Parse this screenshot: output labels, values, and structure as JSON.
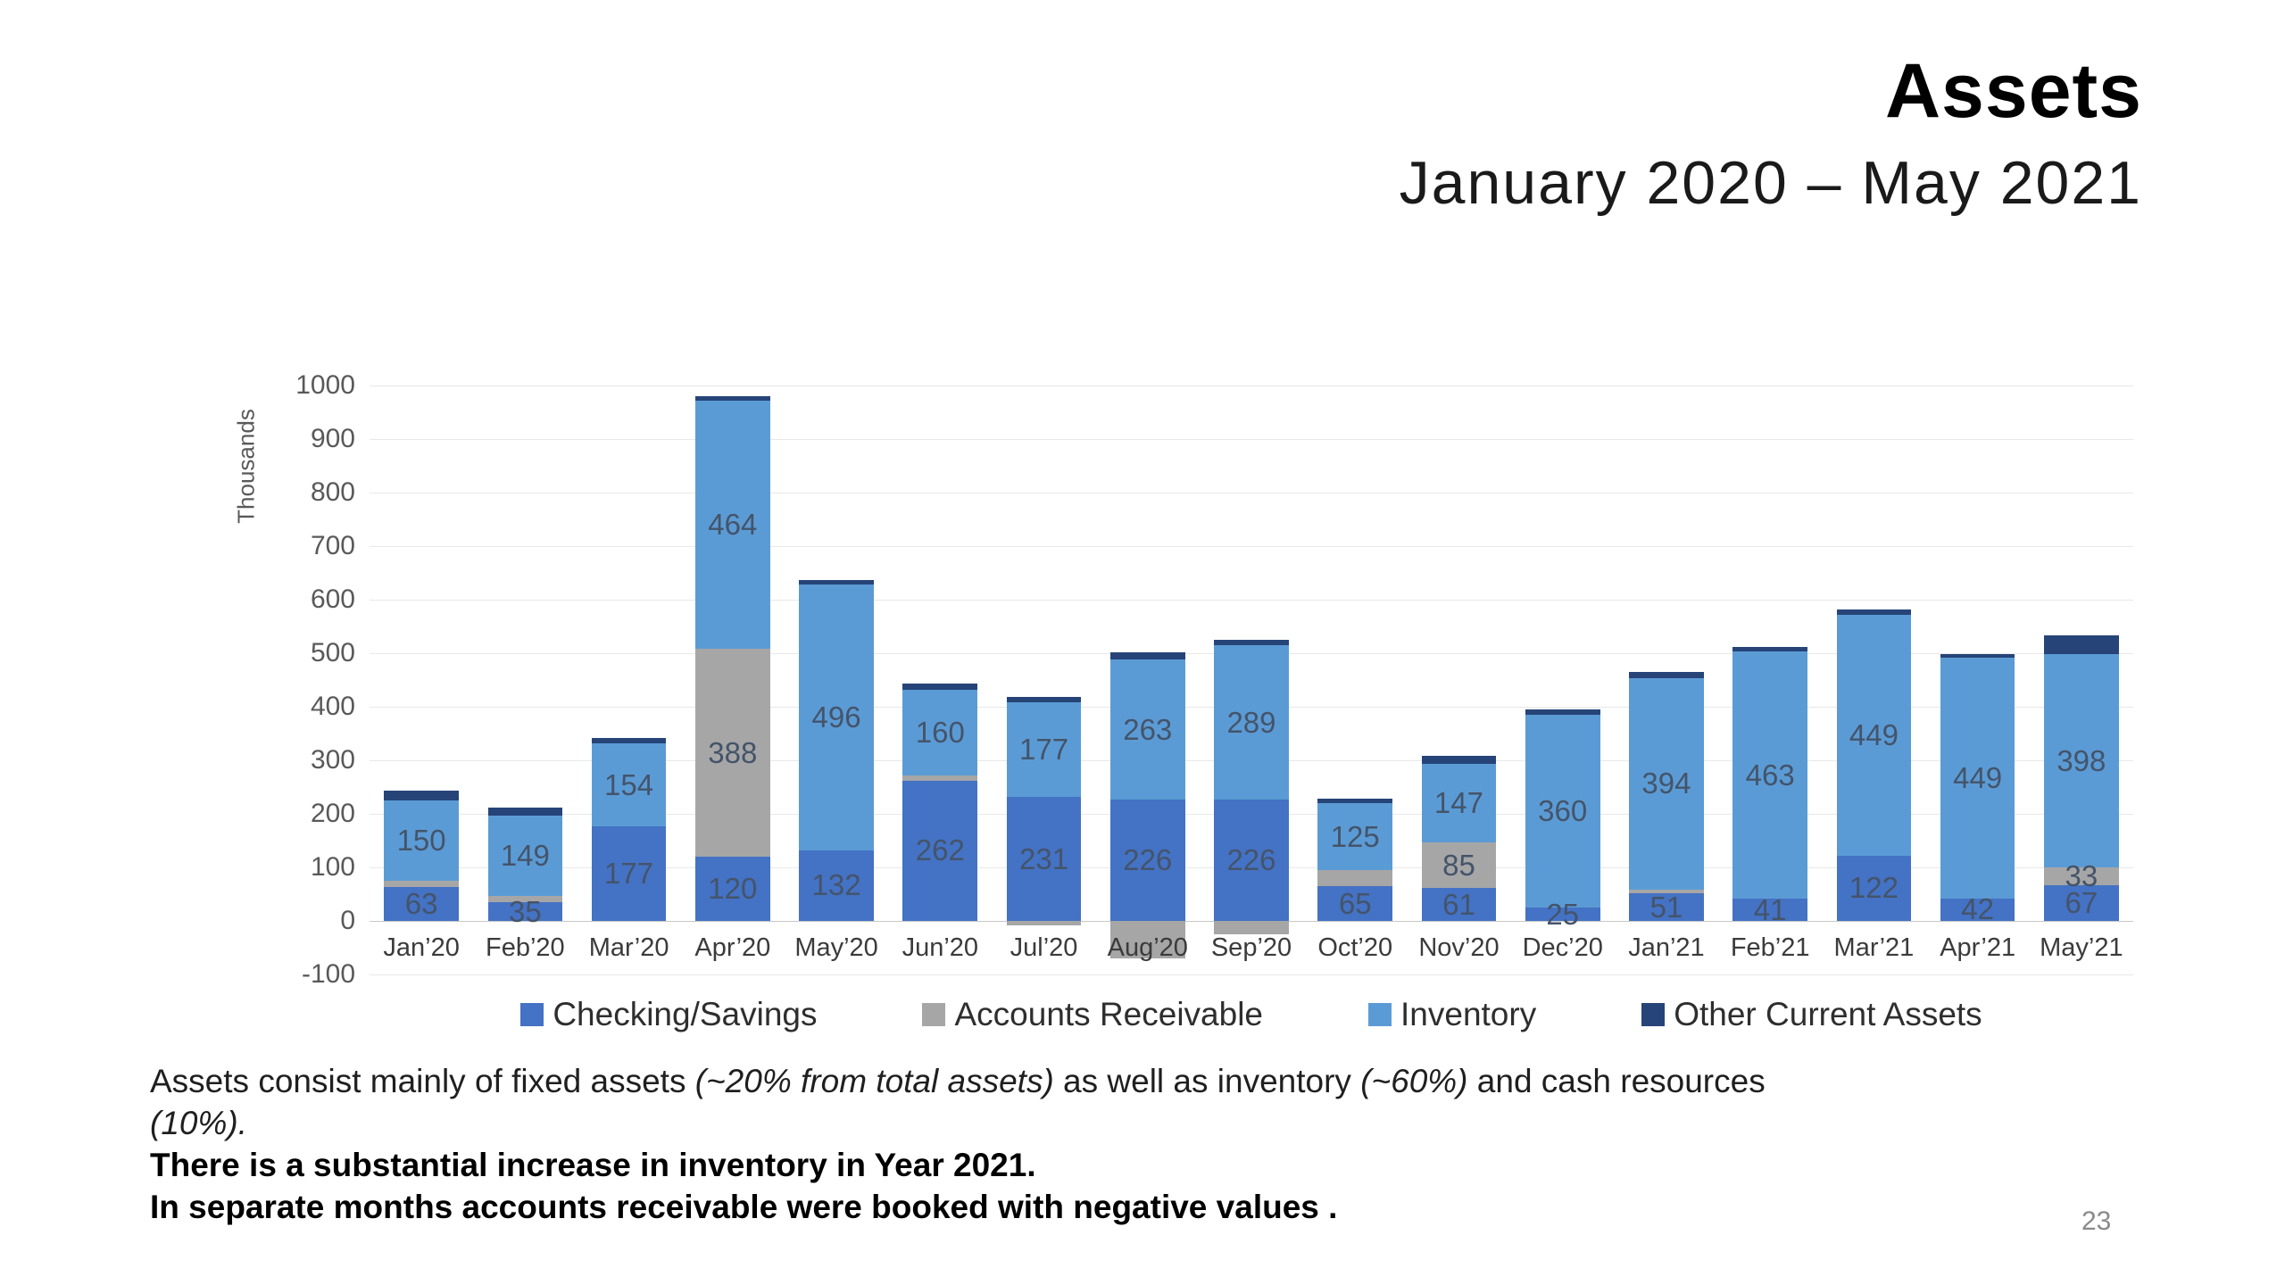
{
  "header": {
    "title": "Assets",
    "subtitle": "January 2020 – May 2021"
  },
  "chart_data": {
    "type": "bar",
    "stacked": true,
    "y_axis_title": "Thousands",
    "ylim": [
      -100,
      1000
    ],
    "y_ticks": [
      1000,
      900,
      800,
      700,
      600,
      500,
      400,
      300,
      200,
      100,
      0,
      -100
    ],
    "grid": true,
    "legend_position": "bottom",
    "categories": [
      "Jan’20",
      "Feb’20",
      "Mar’20",
      "Apr’20",
      "May’20",
      "Jun’20",
      "Jul’20",
      "Aug’20",
      "Sep’20",
      "Oct’20",
      "Nov’20",
      "Dec’20",
      "Jan’21",
      "Feb’21",
      "Mar’21",
      "Apr’21",
      "May’21"
    ],
    "series": [
      {
        "name": "Checking/Savings",
        "color": "#4472C4",
        "values": [
          63,
          35,
          177,
          120,
          132,
          262,
          231,
          226,
          226,
          65,
          61,
          25,
          51,
          41,
          122,
          42,
          67
        ],
        "shown_labels": [
          "63",
          "35",
          "177",
          "120",
          "132",
          "262",
          "231",
          "226",
          "226",
          "65",
          "61",
          "25",
          "51",
          "41",
          "122",
          "42",
          "67"
        ]
      },
      {
        "name": "Accounts Receivable",
        "color": "#A6A6A6",
        "values": [
          12,
          12,
          0,
          388,
          0,
          10,
          -8,
          -70,
          -25,
          30,
          85,
          0,
          8,
          0,
          0,
          0,
          33
        ],
        "shown_labels": [
          null,
          null,
          null,
          "388",
          null,
          null,
          null,
          null,
          null,
          null,
          "85",
          null,
          null,
          null,
          null,
          null,
          "33"
        ]
      },
      {
        "name": "Inventory",
        "color": "#5B9BD5",
        "values": [
          150,
          149,
          154,
          464,
          496,
          160,
          177,
          263,
          289,
          125,
          147,
          360,
          394,
          463,
          449,
          449,
          398
        ],
        "shown_labels": [
          "150",
          "149",
          "154",
          "464",
          "496",
          "160",
          "177",
          "263",
          "289",
          "125",
          "147",
          "360",
          "394",
          "463",
          "449",
          "449",
          "398"
        ]
      },
      {
        "name": "Other Current Assets",
        "color": "#264478",
        "values": [
          18,
          15,
          10,
          8,
          8,
          12,
          10,
          12,
          10,
          8,
          15,
          10,
          12,
          8,
          10,
          8,
          35
        ],
        "shown_labels": [
          null,
          null,
          null,
          null,
          null,
          null,
          null,
          null,
          null,
          null,
          null,
          null,
          null,
          null,
          null,
          null,
          null
        ]
      }
    ]
  },
  "caption": {
    "line1_parts": [
      {
        "text": "Assets consist mainly of fixed assets ",
        "italic": false
      },
      {
        "text": "(~20% from total assets)",
        "italic": true
      },
      {
        "text": " as well as inventory ",
        "italic": false
      },
      {
        "text": "(~60%)",
        "italic": true
      },
      {
        "text": " and cash resources ",
        "italic": false
      }
    ],
    "line2": "(10%).",
    "line3": "There is a substantial increase in inventory in Year 2021.",
    "line4": "In separate months accounts receivable were booked with negative values ."
  },
  "page_number": "23"
}
